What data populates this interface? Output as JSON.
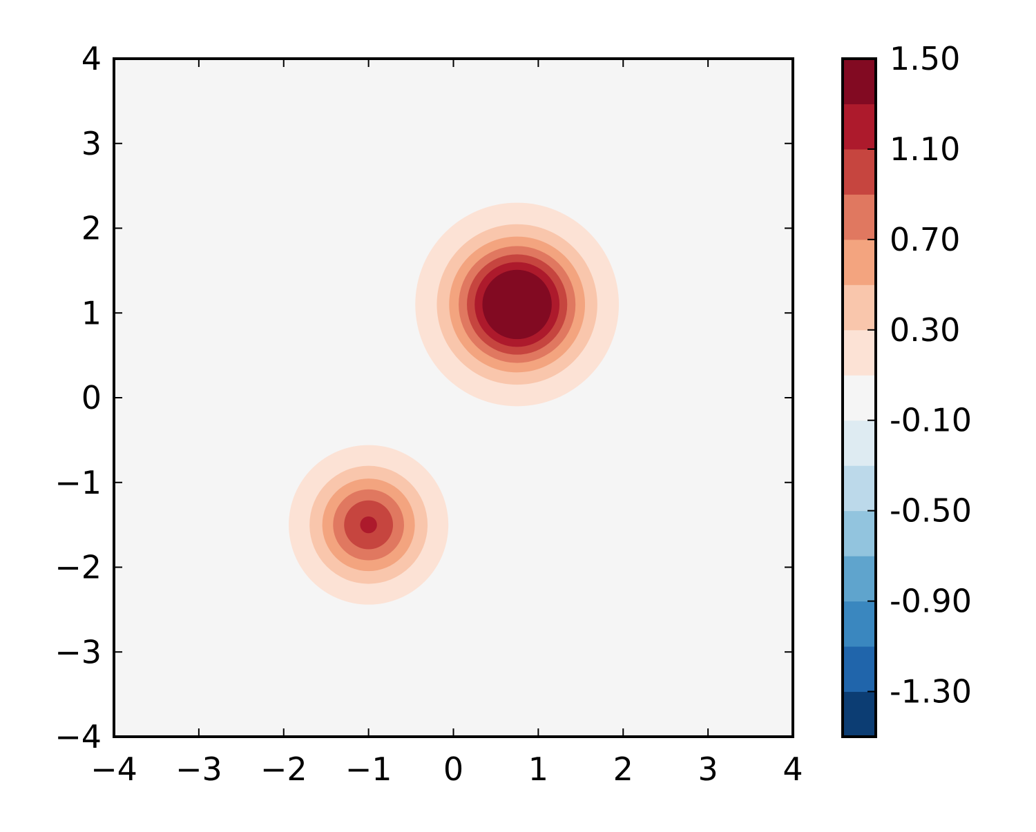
{
  "chart_data": {
    "type": "contourf",
    "title": "",
    "xlabel": "",
    "ylabel": "",
    "xlim": [
      -4,
      4
    ],
    "ylim": [
      -4,
      4
    ],
    "xticks": [
      "−4",
      "−3",
      "−2",
      "−1",
      "0",
      "1",
      "2",
      "3",
      "4"
    ],
    "yticks": [
      "4",
      "3",
      "2",
      "1",
      "0",
      "−1",
      "−2",
      "−3",
      "−4"
    ],
    "grid": false,
    "levels": [
      -1.5,
      -1.3,
      -1.1,
      -0.9,
      -0.7,
      -0.5,
      -0.3,
      -0.1,
      0.1,
      0.3,
      0.5,
      0.7,
      0.9,
      1.1,
      1.3,
      1.5
    ],
    "colors": [
      "#0c3d73",
      "#2065ab",
      "#3a87bf",
      "#5fa4cd",
      "#92c4de",
      "#bcd9ea",
      "#deebf2",
      "#f5f5f5",
      "#fce2d5",
      "#f9c6ac",
      "#f3a47f",
      "#e07860",
      "#c6453f",
      "#ad1a2c",
      "#820a22"
    ],
    "peaks": [
      {
        "x": 0.75,
        "y": 1.1,
        "amplitude": 1.82,
        "sigma": 0.498
      },
      {
        "x": -1.0,
        "y": -1.5,
        "amplitude": 1.13,
        "sigma": 0.427
      }
    ],
    "colorbar": {
      "ticks": [
        "1.50",
        "1.10",
        "0.70",
        "0.30",
        "-0.10",
        "-0.50",
        "-0.90",
        "-1.30"
      ],
      "tick_values": [
        1.5,
        1.1,
        0.7,
        0.3,
        -0.1,
        -0.5,
        -0.9,
        -1.3
      ],
      "placement": "right"
    }
  }
}
